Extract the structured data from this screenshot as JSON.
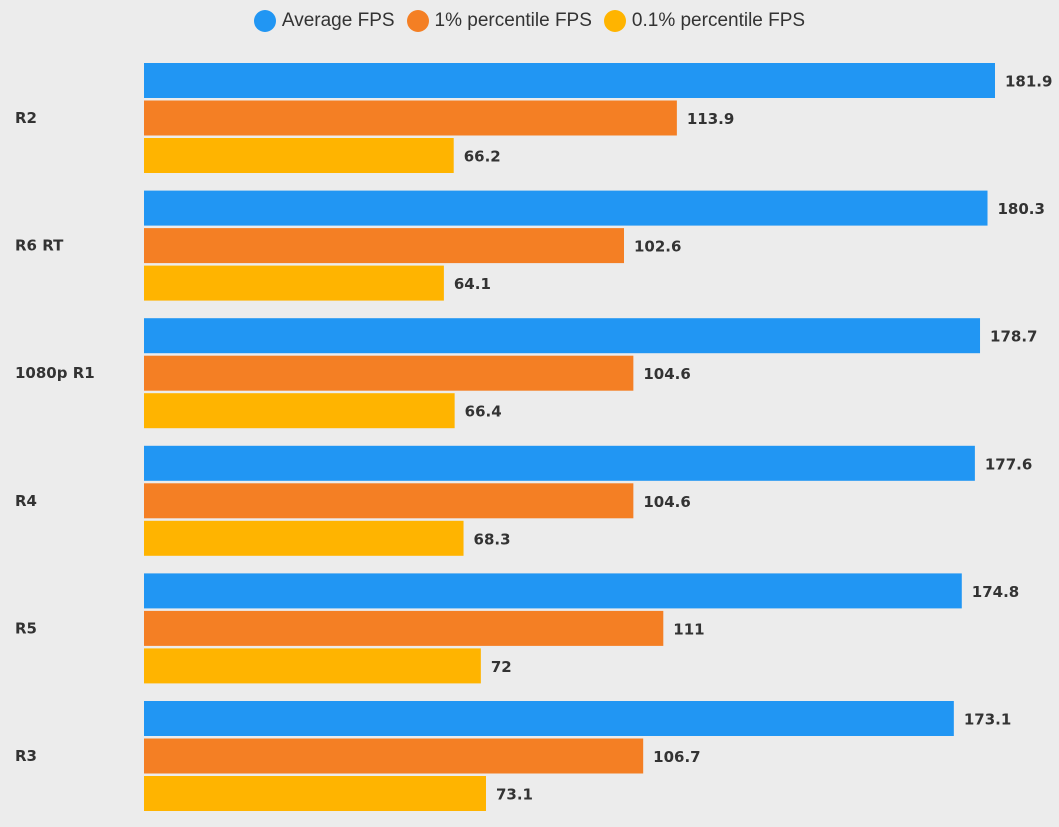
{
  "chart_data": {
    "type": "bar",
    "orientation": "horizontal",
    "title": "",
    "xlabel": "",
    "ylabel": "",
    "xlim": [
      0,
      181.9
    ],
    "grid": false,
    "legend_position": "top-center",
    "categories": [
      "R2",
      "R6 RT",
      "1080p R1",
      "R4",
      "R5",
      "R3"
    ],
    "series": [
      {
        "name": "Average FPS",
        "color": "#2196f3",
        "values": [
          181.9,
          180.3,
          178.7,
          177.6,
          174.8,
          173.1
        ]
      },
      {
        "name": "1% percentile FPS",
        "color": "#f47f24",
        "values": [
          113.9,
          102.6,
          104.6,
          104.6,
          111,
          106.7
        ]
      },
      {
        "name": "0.1% percentile FPS",
        "color": "#ffb400",
        "values": [
          66.2,
          64.1,
          66.4,
          68.3,
          72,
          73.1
        ]
      }
    ]
  }
}
